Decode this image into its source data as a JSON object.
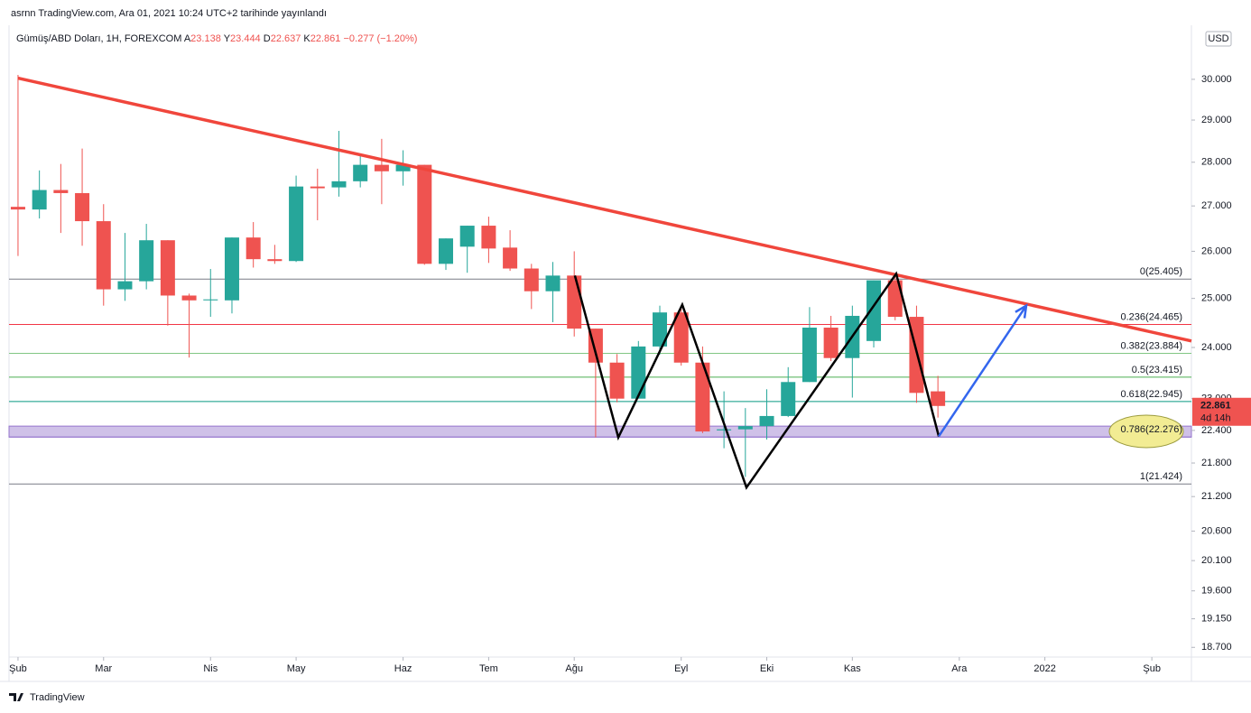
{
  "chart_data": {
    "type": "candlestick",
    "header": "asrnn TradingView.com, Ara 01, 2021 10:24 UTC+2 tarihinde yayınlandı",
    "symbol": "Gümüş/ABD Doları, 1H, FOREXCOM",
    "legend": [
      {
        "key": "A",
        "value": 23.138
      },
      {
        "key": "Y",
        "value": 23.444
      },
      {
        "key": "D",
        "value": 22.637
      },
      {
        "key": "K",
        "value": 22.861
      }
    ],
    "change": "−0.277 (−1.20%)",
    "currency": "USD",
    "brand": "TradingView",
    "up_color": "#26a69a",
    "down_color": "#ef5350",
    "log_scale": true,
    "x": [
      0,
      1,
      2,
      3,
      4,
      5,
      6,
      7,
      8,
      9,
      10,
      11,
      12,
      13,
      14,
      15,
      16,
      17,
      18,
      19,
      20,
      21,
      22,
      23,
      24,
      25,
      26,
      27,
      28,
      29,
      30,
      31,
      32,
      33,
      34,
      35,
      36,
      37,
      38,
      39,
      40,
      41,
      42,
      43
    ],
    "open": [
      26.98,
      26.92,
      27.36,
      27.29,
      26.66,
      25.19,
      25.36,
      26.24,
      25.06,
      24.96,
      24.96,
      26.3,
      25.83,
      25.79,
      27.44,
      27.42,
      27.56,
      27.94,
      27.79,
      27.94,
      25.73,
      26.1,
      26.56,
      26.08,
      25.63,
      25.15,
      25.48,
      24.38,
      23.7,
      23.0,
      24.02,
      24.71,
      23.7,
      22.4,
      22.42,
      22.48,
      22.67,
      23.32,
      24.4,
      23.79,
      24.13,
      25.38,
      24.62,
      23.14
    ],
    "high": [
      30.11,
      27.81,
      27.96,
      28.32,
      27.04,
      26.4,
      26.6,
      26.24,
      25.1,
      25.62,
      26.3,
      26.64,
      26.14,
      27.69,
      27.85,
      28.74,
      28.17,
      28.55,
      28.28,
      27.94,
      26.28,
      26.56,
      26.76,
      26.46,
      25.73,
      25.77,
      26.0,
      24.38,
      23.87,
      24.13,
      24.85,
      24.82,
      24.02,
      23.14,
      22.82,
      23.18,
      23.61,
      24.82,
      24.64,
      24.85,
      25.38,
      25.52,
      24.85,
      23.44
    ],
    "low": [
      25.9,
      26.72,
      26.4,
      26.12,
      24.85,
      24.95,
      25.19,
      24.44,
      23.8,
      24.62,
      24.69,
      25.65,
      25.73,
      25.77,
      26.68,
      27.21,
      27.42,
      27.04,
      27.46,
      25.71,
      25.6,
      25.54,
      25.75,
      25.58,
      24.78,
      24.51,
      24.22,
      22.27,
      22.93,
      23.0,
      23.86,
      23.64,
      22.35,
      22.07,
      21.55,
      22.23,
      22.65,
      23.32,
      23.73,
      23.02,
      24.0,
      24.55,
      22.92,
      22.64
    ],
    "close": [
      26.92,
      27.36,
      27.29,
      26.66,
      25.19,
      25.36,
      26.24,
      25.06,
      24.96,
      24.98,
      26.3,
      25.83,
      25.79,
      27.44,
      27.4,
      27.56,
      27.94,
      27.79,
      27.94,
      25.73,
      26.28,
      26.56,
      26.06,
      25.63,
      25.15,
      25.48,
      24.38,
      23.7,
      23.0,
      24.02,
      24.71,
      23.7,
      22.38,
      22.42,
      22.48,
      22.67,
      23.32,
      24.4,
      23.79,
      24.64,
      25.38,
      24.62,
      23.11,
      22.86
    ],
    "xlim": [
      -0.42,
      54.85
    ],
    "xticks": [
      {
        "value": 0,
        "label": "Şub"
      },
      {
        "value": 4,
        "label": "Mar"
      },
      {
        "value": 9,
        "label": "Nis"
      },
      {
        "value": 13,
        "label": "May"
      },
      {
        "value": 18,
        "label": "Haz"
      },
      {
        "value": 22,
        "label": "Tem"
      },
      {
        "value": 26,
        "label": "Ağu"
      },
      {
        "value": 31,
        "label": "Eyl"
      },
      {
        "value": 35,
        "label": "Eki"
      },
      {
        "value": 39,
        "label": "Kas"
      },
      {
        "value": 44,
        "label": "Ara"
      },
      {
        "value": 48,
        "label": "2022"
      },
      {
        "value": 53,
        "label": "Şub"
      }
    ],
    "ylim": [
      18.55,
      31.38
    ],
    "yticks": [
      {
        "value": 30,
        "label": "30.000"
      },
      {
        "value": 29,
        "label": "29.000"
      },
      {
        "value": 28,
        "label": "28.000"
      },
      {
        "value": 27,
        "label": "27.000"
      },
      {
        "value": 26,
        "label": "26.000"
      },
      {
        "value": 25,
        "label": "25.000"
      },
      {
        "value": 24,
        "label": "24.000"
      },
      {
        "value": 23,
        "label": "23.000"
      },
      {
        "value": 22.4,
        "label": "22.400"
      },
      {
        "value": 21.8,
        "label": "21.800"
      },
      {
        "value": 21.2,
        "label": "21.200"
      },
      {
        "value": 20.6,
        "label": "20.600"
      },
      {
        "value": 20.1,
        "label": "20.100"
      },
      {
        "value": 19.6,
        "label": "19.600"
      },
      {
        "value": 19.15,
        "label": "19.150"
      },
      {
        "value": 18.7,
        "label": "18.700"
      }
    ],
    "fib_levels": [
      {
        "value": 25.405,
        "label": "0(25.405)",
        "color": "#787b86"
      },
      {
        "value": 24.465,
        "label": "0.236(24.465)",
        "color": "#f23645"
      },
      {
        "value": 23.884,
        "label": "0.382(23.884)",
        "color": "#81c784"
      },
      {
        "value": 23.415,
        "label": "0.5(23.415)",
        "color": "#4caf50"
      },
      {
        "value": 22.945,
        "label": "0.618(22.945)",
        "color": "#089981"
      },
      {
        "value": 22.276,
        "label": "0.786(22.276)",
        "color": "#9575cd"
      },
      {
        "value": 21.424,
        "label": "1(21.424)",
        "color": "#787b86"
      }
    ],
    "zone": [
      22.276,
      22.48
    ],
    "trendline": {
      "color": "#f0463c",
      "x": [
        0,
        54.85
      ],
      "values": [
        30.03,
        24.13
      ]
    },
    "pattern": {
      "color": "#000000",
      "x": [
        26.03,
        28.06,
        31.05,
        34.05,
        41.05,
        43.04
      ],
      "values": [
        25.48,
        22.27,
        24.87,
        21.36,
        25.52,
        22.29
      ]
    },
    "projection": {
      "color": "#3366ee",
      "x": [
        43.04,
        47.13
      ],
      "values": [
        22.29,
        24.85
      ]
    },
    "last_price": {
      "value": 22.861,
      "countdown": "4d 14h",
      "color": "#ef5350"
    }
  }
}
